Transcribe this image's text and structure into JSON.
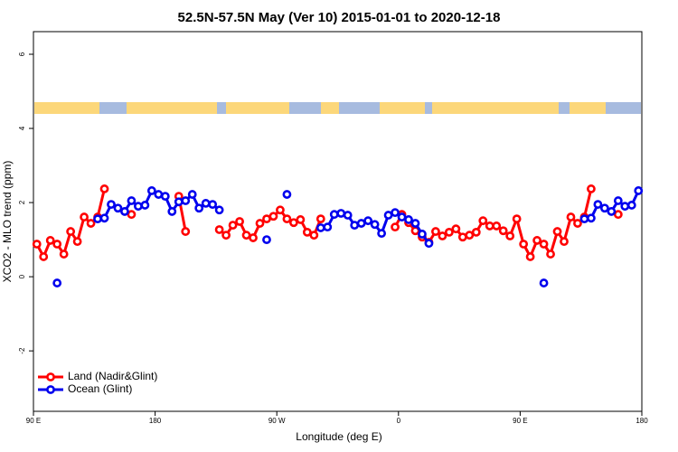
{
  "chart_data": {
    "type": "line",
    "title": "52.5N-57.5N May (Ver 10)   2015-01-01 to 2020-12-18",
    "x_label": "Longitude (deg E)",
    "y_label": "XCO2 - MLO trend (ppm)",
    "x": [
      92.5,
      97.5,
      102.5,
      107.5,
      112.5,
      117.5,
      122.5,
      127.5,
      132.5,
      137.5,
      142.5,
      147.5,
      152.5,
      157.5,
      162.5,
      167.5,
      172.5,
      177.5,
      182.5,
      187.5,
      192.5,
      197.5,
      202.5,
      207.5,
      212.5,
      217.5,
      222.5,
      227.5,
      232.5,
      237.5,
      242.5,
      247.5,
      252.5,
      257.5,
      262.5,
      267.5,
      272.5,
      277.5,
      282.5,
      287.5,
      292.5,
      297.5,
      302.5,
      307.5,
      312.5,
      317.5,
      322.5,
      327.5,
      332.5,
      337.5,
      342.5,
      347.5,
      352.5,
      357.5,
      362.5,
      367.5,
      372.5,
      377.5,
      382.5,
      387.5,
      392.5,
      397.5,
      402.5,
      407.5,
      412.5,
      417.5,
      422.5,
      427.5,
      432.5,
      437.5,
      442.5,
      447.5,
      452.5,
      457.5,
      462.5,
      467.5,
      472.5,
      477.5,
      482.5,
      487.5,
      492.5,
      497.5,
      502.5,
      507.5,
      512.5,
      517.5,
      522.5,
      527.5,
      532.5,
      537.5
    ],
    "series": [
      {
        "name": "Land (Nadir&Glint)",
        "color": "#ff0000",
        "values": [
          0.88,
          0.54,
          0.98,
          0.88,
          0.61,
          1.22,
          0.95,
          1.61,
          1.44,
          1.61,
          2.37,
          null,
          null,
          null,
          1.68,
          null,
          null,
          null,
          null,
          null,
          null,
          2.17,
          1.22,
          null,
          null,
          null,
          null,
          1.27,
          1.12,
          1.39,
          1.49,
          1.12,
          1.05,
          1.44,
          1.56,
          1.63,
          1.8,
          1.56,
          1.46,
          1.54,
          1.2,
          1.12,
          1.56,
          null,
          null,
          null,
          null,
          null,
          null,
          null,
          null,
          null,
          null,
          1.34,
          1.68,
          1.46,
          1.24,
          1.07,
          0.93,
          1.22,
          1.1,
          1.2,
          1.29,
          1.07,
          1.12,
          1.2,
          1.51,
          1.37,
          1.37,
          1.24,
          1.1,
          1.56,
          0.88,
          0.54,
          0.98,
          0.88,
          0.61,
          1.22,
          0.95,
          1.61,
          1.44,
          1.61,
          2.37,
          null,
          null,
          null,
          1.68,
          null,
          null,
          null
        ]
      },
      {
        "name": "Ocean (Glint)",
        "color": "#0000ee",
        "values": [
          null,
          null,
          null,
          -0.17,
          null,
          null,
          null,
          null,
          null,
          1.56,
          1.58,
          1.95,
          1.85,
          1.76,
          2.05,
          1.9,
          1.93,
          2.32,
          2.22,
          2.17,
          1.76,
          2.02,
          2.05,
          2.22,
          1.85,
          1.98,
          1.95,
          1.8,
          null,
          null,
          null,
          null,
          null,
          null,
          1.0,
          null,
          null,
          2.22,
          null,
          null,
          null,
          null,
          1.32,
          1.34,
          1.68,
          1.71,
          1.66,
          1.39,
          1.44,
          1.51,
          1.41,
          1.17,
          1.66,
          1.73,
          1.61,
          1.54,
          1.44,
          1.15,
          0.9,
          null,
          null,
          null,
          null,
          null,
          null,
          null,
          null,
          null,
          null,
          null,
          null,
          null,
          null,
          null,
          null,
          -0.17,
          null,
          null,
          null,
          null,
          null,
          1.56,
          1.58,
          1.95,
          1.85,
          1.76,
          2.05,
          1.9,
          1.93,
          2.32
        ]
      }
    ],
    "xlim": [
      90,
      540
    ],
    "xticks": [
      {
        "value": 90,
        "label": "90 E"
      },
      180,
      {
        "value": 270,
        "label": "90 W"
      },
      {
        "value": 360,
        "label": "0"
      },
      {
        "value": 450,
        "label": "90 E"
      },
      180
    ],
    "ylim": [
      -3.63,
      6.61
    ],
    "yticks": [
      -2,
      0,
      2,
      4,
      6
    ],
    "grid": false,
    "legend": "bottom-left"
  }
}
